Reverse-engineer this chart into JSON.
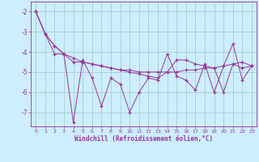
{
  "xlabel": "Windchill (Refroidissement éolien,°C)",
  "background_color": "#cceeff",
  "grid_color": "#aacccc",
  "line_color": "#993399",
  "x": [
    0,
    1,
    2,
    3,
    4,
    5,
    6,
    7,
    8,
    9,
    10,
    11,
    12,
    13,
    14,
    15,
    16,
    17,
    18,
    19,
    20,
    21,
    22,
    23
  ],
  "series1": [
    -2.0,
    -3.1,
    -3.7,
    -4.1,
    -7.5,
    -4.4,
    -5.3,
    -6.7,
    -5.3,
    -5.6,
    -7.0,
    -6.0,
    -5.3,
    -5.4,
    -4.1,
    -5.2,
    -5.4,
    -5.9,
    -4.6,
    -6.0,
    -4.7,
    -3.6,
    -5.4,
    -4.7
  ],
  "series2": [
    -2.0,
    -3.1,
    -3.7,
    -4.1,
    -4.5,
    -4.5,
    -4.6,
    -4.7,
    -4.8,
    -4.9,
    -4.9,
    -5.0,
    -5.0,
    -5.0,
    -5.0,
    -5.0,
    -4.9,
    -4.9,
    -4.8,
    -4.8,
    -4.7,
    -4.6,
    -4.5,
    -4.7
  ],
  "series3": [
    -2.0,
    -3.1,
    -4.1,
    -4.1,
    -4.3,
    -4.5,
    -4.6,
    -4.7,
    -4.8,
    -4.9,
    -5.0,
    -5.1,
    -5.2,
    -5.3,
    -5.0,
    -4.4,
    -4.4,
    -4.6,
    -4.7,
    -4.8,
    -6.0,
    -4.6,
    -4.8,
    -4.7
  ],
  "ylim": [
    -7.7,
    -1.5
  ],
  "xlim": [
    -0.5,
    23.5
  ],
  "yticks": [
    -7,
    -6,
    -5,
    -4,
    -3,
    -2
  ],
  "xticks": [
    0,
    1,
    2,
    3,
    4,
    5,
    6,
    7,
    8,
    9,
    10,
    11,
    12,
    13,
    14,
    15,
    16,
    17,
    18,
    19,
    20,
    21,
    22,
    23
  ]
}
